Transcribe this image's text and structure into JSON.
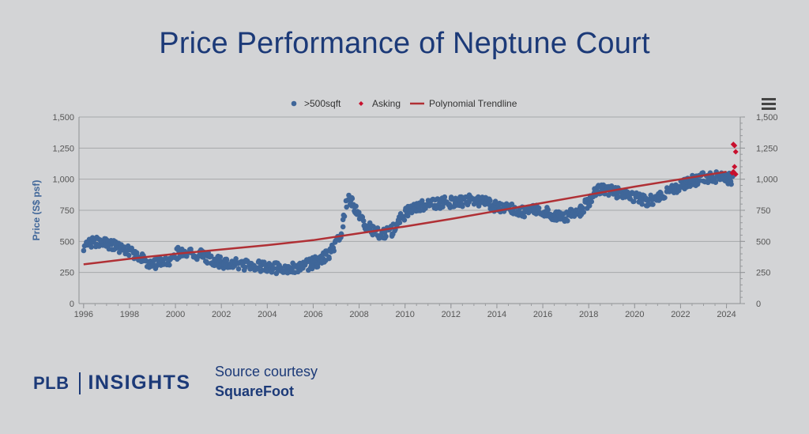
{
  "title": "Price Performance of Neptune Court",
  "branding": {
    "logo_left": "PLB",
    "logo_right": "INSIGHTS"
  },
  "source": {
    "line1": "Source courtesy",
    "line2": "SquareFoot"
  },
  "menu_icon": "hamburger-menu-icon",
  "chart_data": {
    "type": "scatter",
    "title": "",
    "ylabel": "Price (S$ psf)",
    "xlabel": "",
    "xlim": [
      1995.8,
      2024.6
    ],
    "ylim": [
      0,
      1500
    ],
    "x_ticks": [
      "1996",
      "1998",
      "2000",
      "2002",
      "2004",
      "2006",
      "2008",
      "2010",
      "2012",
      "2014",
      "2016",
      "2018",
      "2020",
      "2022",
      "2024"
    ],
    "y_ticks": [
      "0",
      "250",
      "500",
      "750",
      "1,000",
      "1,250",
      "1,500"
    ],
    "grid": true,
    "legend": "top-center",
    "colors": {
      "transactions": "#3f6699",
      "asking": "#c8102e",
      "trend": "#b03035"
    },
    "legend_items": [
      ">500sqft",
      "Asking",
      "Polynomial Trendline"
    ],
    "series": [
      {
        "name": ">500sqft",
        "trend": [
          [
            1996.0,
            460
          ],
          [
            1996.6,
            500
          ],
          [
            1997.2,
            480
          ],
          [
            1997.8,
            440
          ],
          [
            1998.4,
            380
          ],
          [
            1999.0,
            310
          ],
          [
            1999.6,
            330
          ],
          [
            2000.2,
            420
          ],
          [
            2000.8,
            410
          ],
          [
            2001.4,
            370
          ],
          [
            2002.0,
            330
          ],
          [
            2002.6,
            320
          ],
          [
            2003.2,
            310
          ],
          [
            2003.8,
            295
          ],
          [
            2004.4,
            285
          ],
          [
            2005.0,
            280
          ],
          [
            2005.6,
            300
          ],
          [
            2006.2,
            340
          ],
          [
            2006.8,
            420
          ],
          [
            2007.2,
            560
          ],
          [
            2007.5,
            850
          ],
          [
            2007.8,
            780
          ],
          [
            2008.2,
            650
          ],
          [
            2008.6,
            590
          ],
          [
            2009.0,
            560
          ],
          [
            2009.4,
            580
          ],
          [
            2009.8,
            680
          ],
          [
            2010.2,
            760
          ],
          [
            2010.6,
            780
          ],
          [
            2011.0,
            790
          ],
          [
            2011.6,
            810
          ],
          [
            2012.2,
            820
          ],
          [
            2012.8,
            830
          ],
          [
            2013.4,
            820
          ],
          [
            2014.0,
            780
          ],
          [
            2014.6,
            760
          ],
          [
            2015.2,
            740
          ],
          [
            2015.8,
            770
          ],
          [
            2016.4,
            720
          ],
          [
            2017.0,
            700
          ],
          [
            2017.6,
            740
          ],
          [
            2018.0,
            820
          ],
          [
            2018.4,
            930
          ],
          [
            2018.8,
            910
          ],
          [
            2019.4,
            880
          ],
          [
            2020.0,
            850
          ],
          [
            2020.6,
            820
          ],
          [
            2021.2,
            870
          ],
          [
            2021.8,
            930
          ],
          [
            2022.4,
            980
          ],
          [
            2023.0,
            1010
          ],
          [
            2023.6,
            1020
          ],
          [
            2024.2,
            1000
          ]
        ],
        "spread": 45
      },
      {
        "name": "Asking",
        "points": [
          [
            2024.3,
            1280
          ],
          [
            2024.35,
            1270
          ],
          [
            2024.4,
            1220
          ],
          [
            2024.35,
            1100
          ],
          [
            2024.3,
            1060
          ],
          [
            2024.4,
            1040
          ],
          [
            2024.25,
            1050
          ]
        ]
      },
      {
        "name": "Polynomial Trendline",
        "points": [
          [
            1996,
            315
          ],
          [
            1998,
            360
          ],
          [
            2000,
            400
          ],
          [
            2002,
            435
          ],
          [
            2004,
            470
          ],
          [
            2006,
            510
          ],
          [
            2008,
            565
          ],
          [
            2010,
            620
          ],
          [
            2012,
            680
          ],
          [
            2014,
            745
          ],
          [
            2016,
            810
          ],
          [
            2018,
            875
          ],
          [
            2020,
            940
          ],
          [
            2022,
            1000
          ],
          [
            2024,
            1060
          ]
        ]
      }
    ]
  }
}
